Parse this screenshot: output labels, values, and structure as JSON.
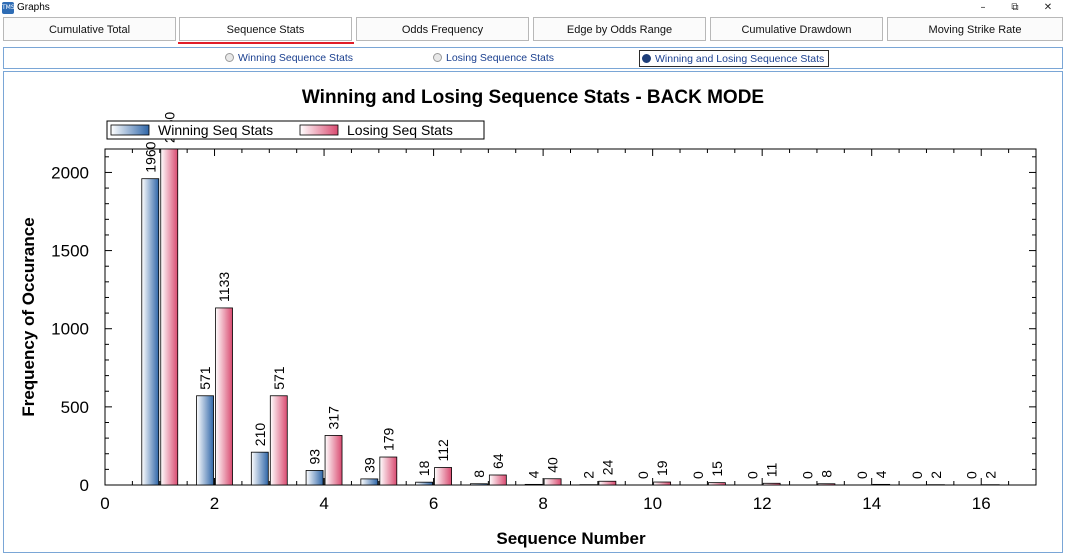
{
  "window": {
    "title": "Graphs",
    "icon_label": "TMS"
  },
  "window_controls": {
    "minimize": "–",
    "restore": "⧉",
    "close": "✕"
  },
  "tabs": [
    {
      "label": "Cumulative Total",
      "active": false
    },
    {
      "label": "Sequence Stats",
      "active": true
    },
    {
      "label": "Odds Frequency",
      "active": false
    },
    {
      "label": "Edge by Odds Range",
      "active": false
    },
    {
      "label": "Cumulative Drawdown",
      "active": false
    },
    {
      "label": "Moving Strike Rate",
      "active": false
    }
  ],
  "radios": [
    {
      "label": "Winning Sequence Stats",
      "selected": false
    },
    {
      "label": "Losing Sequence Stats",
      "selected": false
    },
    {
      "label": "Winning and Losing Sequence Stats",
      "selected": true
    }
  ],
  "colors": {
    "accent": "#e01e2a",
    "win_series": "#2f66a8",
    "lose_series": "#d94a70"
  },
  "chart_data": {
    "type": "bar",
    "title": "Winning and Losing Sequence Stats - BACK MODE",
    "xlabel": "Sequence Number",
    "ylabel": "Frequency of Occurance",
    "xlim": [
      0,
      17
    ],
    "ylim": [
      0,
      2150
    ],
    "xticks": [
      0,
      2,
      4,
      6,
      8,
      10,
      12,
      14,
      16
    ],
    "yticks": [
      0,
      500,
      1000,
      1500,
      2000
    ],
    "legend_position": "top-left",
    "categories": [
      1,
      2,
      3,
      4,
      5,
      6,
      7,
      8,
      9,
      10,
      11,
      12,
      13,
      14,
      15,
      16
    ],
    "series": [
      {
        "name": "Winning Seq Stats",
        "values": [
          1960,
          571,
          210,
          93,
          39,
          18,
          8,
          4,
          2,
          0,
          0,
          0,
          0,
          0,
          0,
          0
        ]
      },
      {
        "name": "Losing Seq Stats",
        "values": [
          2150,
          1133,
          571,
          317,
          179,
          112,
          64,
          40,
          24,
          19,
          15,
          11,
          8,
          4,
          2,
          2
        ]
      }
    ]
  }
}
